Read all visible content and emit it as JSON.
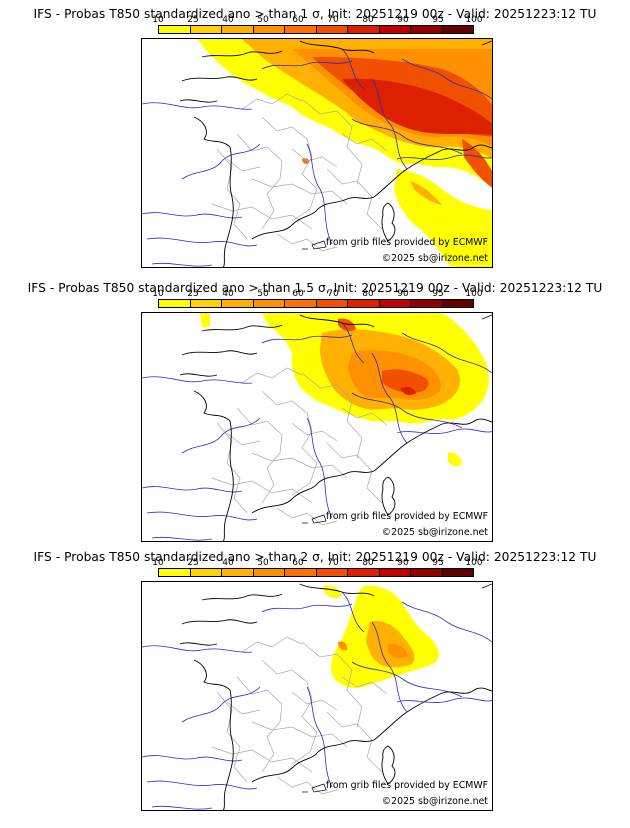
{
  "colors": {
    "scale": [
      "#ffff00",
      "#ffd200",
      "#ffb000",
      "#ff9000",
      "#ff7000",
      "#f05000",
      "#dd2000",
      "#c00000",
      "#900000",
      "#600000"
    ],
    "coast": "#000000",
    "rivers": "#2a2ac8",
    "borders": "#a8a8a8"
  },
  "colorbar": {
    "ticks": [
      "10",
      "25",
      "40",
      "50",
      "60",
      "70",
      "80",
      "90",
      "95",
      "100"
    ]
  },
  "panels": [
    {
      "title": "IFS - Probas T850  standardized ano > than 1 σ, Init: 20251219 00z - Valid: 20251223:12 TU",
      "threshold_sigma": 1,
      "credit": "from grib files provided by ECMWF",
      "copyright": "©2025 sb@irizone.net"
    },
    {
      "title": "IFS - Probas T850  standardized ano > than 1.5 σ, Init: 20251219 00z - Valid: 20251223:12 TU",
      "threshold_sigma": 1.5,
      "credit": "from grib files provided by ECMWF",
      "copyright": "©2025 sb@irizone.net"
    },
    {
      "title": "IFS - Probas T850  standardized ano > than 2 σ, Init: 20251219 00z - Valid: 20251223:12 TU",
      "threshold_sigma": 2,
      "credit": "from grib files provided by ECMWF",
      "copyright": "©2025 sb@irizone.net"
    }
  ]
}
